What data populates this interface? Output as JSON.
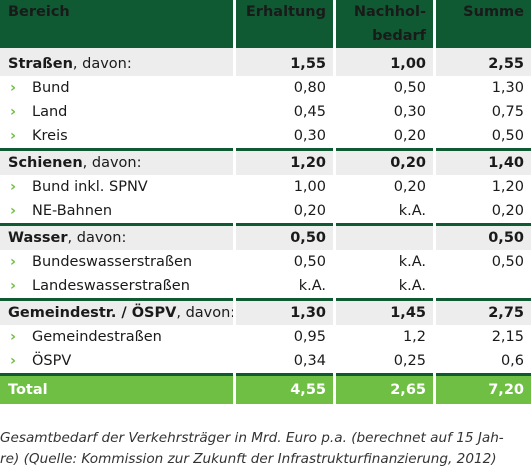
{
  "header": {
    "bereich": "Bereich",
    "erhaltung": "Erhaltung",
    "nachhol_line1": "Nachhol-",
    "nachhol_line2": "bedarf",
    "summe": "Summe"
  },
  "groups": [
    {
      "label": "Straßen",
      "suffix": ", davon:",
      "values": [
        "1,55",
        "1,00",
        "2,55"
      ],
      "items": [
        {
          "label": "Bund",
          "values": [
            "0,80",
            "0,50",
            "1,30"
          ]
        },
        {
          "label": "Land",
          "values": [
            "0,45",
            "0,30",
            "0,75"
          ]
        },
        {
          "label": "Kreis",
          "values": [
            "0,30",
            "0,20",
            "0,50"
          ]
        }
      ]
    },
    {
      "label": "Schienen",
      "suffix": ", davon:",
      "values": [
        "1,20",
        "0,20",
        "1,40"
      ],
      "items": [
        {
          "label": "Bund inkl. SPNV",
          "values": [
            "1,00",
            "0,20",
            "1,20"
          ]
        },
        {
          "label": "NE-Bahnen",
          "values": [
            "0,20",
            "k.A.",
            "0,20"
          ]
        }
      ]
    },
    {
      "label": "Wasser",
      "suffix": ", davon:",
      "values": [
        "0,50",
        "",
        "0,50"
      ],
      "items": [
        {
          "label": "Bundeswasserstraßen",
          "values": [
            "0,50",
            "k.A.",
            "0,50"
          ]
        },
        {
          "label": "Landeswasserstraßen",
          "values": [
            "k.A.",
            "k.A.",
            ""
          ]
        }
      ]
    },
    {
      "label": "Gemeindestr. / ÖSPV",
      "suffix": ", davon:",
      "values": [
        "1,30",
        "1,45",
        "2,75"
      ],
      "items": [
        {
          "label": "Gemeindestraßen",
          "values": [
            "0,95",
            "1,2",
            "2,15"
          ]
        },
        {
          "label": "ÖSPV",
          "values": [
            "0,34",
            "0,25",
            "0,6"
          ]
        }
      ]
    }
  ],
  "total": {
    "label": "Total",
    "values": [
      "4,55",
      "2,65",
      "7,20"
    ]
  },
  "bullet_glyph": "›",
  "caption_line1": "Gesamtbedarf der Verkehrsträger in Mrd. Euro p.a. (berechnet auf 15 Jah-",
  "caption_line2": "re) (Quelle: Kommission zur Zukunft der Infrastrukturfinanzierung, 2012)",
  "colors": {
    "header_green": "#0f5a33",
    "accent_green": "#6fbf44",
    "group_gray": "#ededed"
  }
}
